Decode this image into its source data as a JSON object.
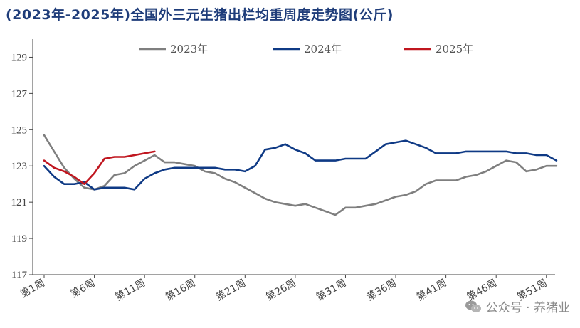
{
  "title": "(2023年-2025年)全国外三元生猪出栏均重周度走势图(公斤)",
  "watermark_text": "公众号 · 养猪业",
  "watermark_icon": "wechat-icon",
  "colors": {
    "s2023": "#7f7f7f",
    "s2024": "#0f3a85",
    "s2025": "#c0161f",
    "axis": "#444444"
  },
  "chart_data": {
    "type": "line",
    "title": "(2023年-2025年)全国外三元生猪出栏均重周度走势图(公斤)",
    "xlabel": "",
    "ylabel": "",
    "ylim": [
      117,
      130
    ],
    "yticks": [
      117,
      119,
      121,
      123,
      125,
      127,
      129
    ],
    "xlim": [
      1,
      53
    ],
    "x_ticks": [
      1,
      6,
      11,
      16,
      21,
      26,
      31,
      36,
      41,
      46,
      51
    ],
    "x_tick_labels": [
      "第1周",
      "第6周",
      "第11周",
      "第16周",
      "第21周",
      "第26周",
      "第31周",
      "第36周",
      "第41周",
      "第46周",
      "第51周"
    ],
    "legend_position": "top",
    "grid": false,
    "series": [
      {
        "name": "2023年",
        "x": [
          1,
          2,
          3,
          4,
          5,
          6,
          7,
          8,
          9,
          10,
          11,
          12,
          13,
          14,
          15,
          16,
          17,
          18,
          19,
          20,
          21,
          22,
          23,
          24,
          25,
          26,
          27,
          28,
          29,
          30,
          31,
          32,
          33,
          34,
          35,
          36,
          37,
          38,
          39,
          40,
          41,
          42,
          43,
          44,
          45,
          46,
          47,
          48,
          49,
          50,
          51,
          52
        ],
        "values": [
          124.7,
          123.8,
          122.9,
          122.3,
          121.8,
          121.7,
          121.9,
          122.5,
          122.6,
          123.0,
          123.3,
          123.6,
          123.2,
          123.2,
          123.1,
          123.0,
          122.7,
          122.6,
          122.3,
          122.1,
          121.8,
          121.5,
          121.2,
          121.0,
          120.9,
          120.8,
          120.9,
          120.7,
          120.5,
          120.3,
          120.7,
          120.7,
          120.8,
          120.9,
          121.1,
          121.3,
          121.4,
          121.6,
          122.0,
          122.2,
          122.2,
          122.2,
          122.4,
          122.5,
          122.7,
          123.0,
          123.3,
          123.2,
          122.7,
          122.8,
          123.0,
          123.0
        ]
      },
      {
        "name": "2024年",
        "x": [
          1,
          2,
          3,
          4,
          5,
          6,
          7,
          8,
          9,
          10,
          11,
          12,
          13,
          14,
          15,
          16,
          17,
          18,
          19,
          20,
          21,
          22,
          23,
          24,
          25,
          26,
          27,
          28,
          29,
          30,
          31,
          32,
          33,
          34,
          35,
          36,
          37,
          38,
          39,
          40,
          41,
          42,
          43,
          44,
          45,
          46,
          47,
          48,
          49,
          50,
          51,
          52
        ],
        "values": [
          123.0,
          122.4,
          122.0,
          122.0,
          122.1,
          121.7,
          121.8,
          121.8,
          121.8,
          121.7,
          122.3,
          122.6,
          122.8,
          122.9,
          122.9,
          122.9,
          122.9,
          122.9,
          122.8,
          122.8,
          122.7,
          123.0,
          123.9,
          124.0,
          124.2,
          123.9,
          123.7,
          123.3,
          123.3,
          123.3,
          123.4,
          123.4,
          123.4,
          123.8,
          124.2,
          124.3,
          124.4,
          124.2,
          124.0,
          123.7,
          123.7,
          123.7,
          123.8,
          123.8,
          123.8,
          123.8,
          123.8,
          123.7,
          123.7,
          123.6,
          123.6,
          123.3
        ]
      },
      {
        "name": "2025年",
        "x": [
          1,
          2,
          3,
          4,
          5,
          6,
          7,
          8,
          9,
          10,
          11,
          12
        ],
        "values": [
          123.3,
          122.9,
          122.7,
          122.4,
          122.0,
          122.6,
          123.4,
          123.5,
          123.5,
          123.6,
          123.7,
          123.8
        ]
      }
    ]
  }
}
